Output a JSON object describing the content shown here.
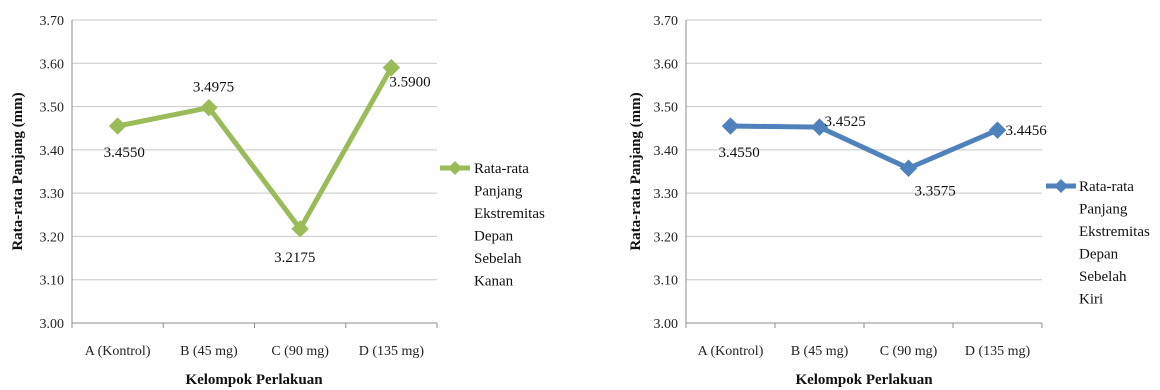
{
  "chart_data": [
    {
      "type": "line",
      "categories": [
        "A (Kontrol)",
        "B (45 mg)",
        "C (90 mg)",
        "D (135 mg)"
      ],
      "series": [
        {
          "name": "Rata-rata Panjang Ekstremitas Depan Sebelah Kanan",
          "name_lines": [
            "Rata-rata",
            "Panjang",
            "Ekstremitas",
            "Depan",
            "Sebelah",
            "Kanan"
          ],
          "values": [
            3.455,
            3.4975,
            3.2175,
            3.59
          ],
          "labels": [
            "3.4550",
            "3.4975",
            "3.2175",
            "3.5900"
          ],
          "color": "#9bbb59"
        }
      ],
      "xlabel": "Kelompok Perlakuan",
      "ylabel": "Rata-rata Panjang (mm)",
      "ylim": [
        3.0,
        3.7
      ],
      "yticks": [
        "3.00",
        "3.10",
        "3.20",
        "3.30",
        "3.40",
        "3.50",
        "3.60",
        "3.70"
      ],
      "grid": true,
      "legend": "right"
    },
    {
      "type": "line",
      "categories": [
        "A (Kontrol)",
        "B (45 mg)",
        "C (90 mg)",
        "D (135 mg)"
      ],
      "series": [
        {
          "name": "Rata-rata Panjang Ekstremitas Depan Sebelah Kiri",
          "name_lines": [
            "Rata-rata",
            "Panjang",
            "Ekstremitas",
            "Depan",
            "Sebelah",
            "Kiri"
          ],
          "values": [
            3.455,
            3.4525,
            3.3575,
            3.4456
          ],
          "labels": [
            "3.4550",
            "3.4525",
            "3.3575",
            "3.4456"
          ],
          "color": "#4f81bd"
        }
      ],
      "xlabel": "Kelompok Perlakuan",
      "ylabel": "Rata-rata Panjang (mm)",
      "ylim": [
        3.0,
        3.7
      ],
      "yticks": [
        "3.00",
        "3.10",
        "3.20",
        "3.30",
        "3.40",
        "3.50",
        "3.60",
        "3.70"
      ],
      "grid": true,
      "legend": "right"
    }
  ]
}
